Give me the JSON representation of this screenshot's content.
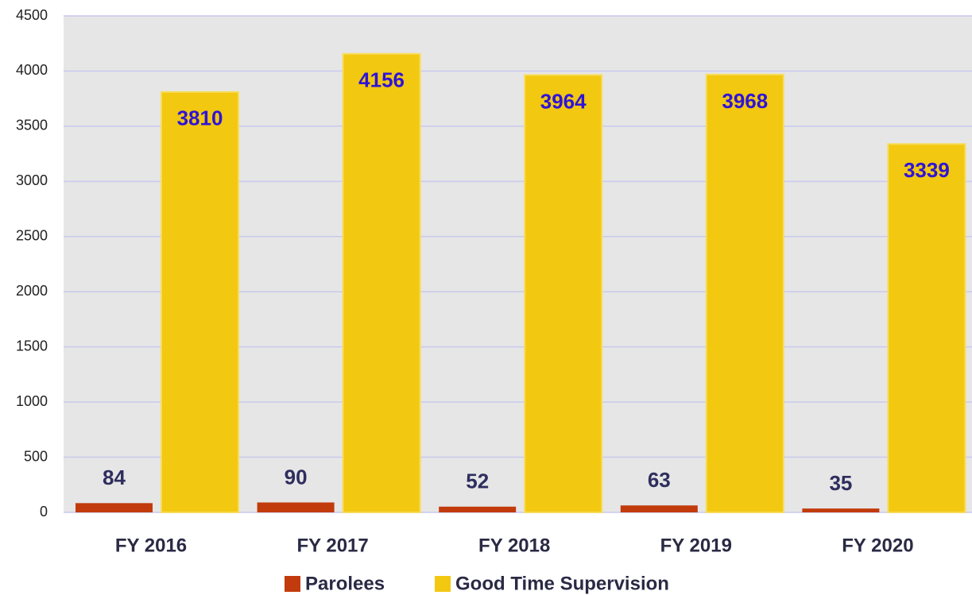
{
  "chart_data": {
    "type": "bar",
    "categories": [
      "FY 2016",
      "FY 2017",
      "FY 2018",
      "FY 2019",
      "FY 2020"
    ],
    "series": [
      {
        "name": "Parolees",
        "color": "#c23b0c",
        "values": [
          84,
          90,
          52,
          63,
          35
        ]
      },
      {
        "name": "Good Time Supervision",
        "color": "#f2c811",
        "values": [
          3810,
          4156,
          3964,
          3968,
          3339
        ]
      }
    ],
    "ylim": [
      0,
      4500
    ],
    "yticks": [
      0,
      500,
      1000,
      1500,
      2000,
      2500,
      3000,
      3500,
      4000,
      4500
    ],
    "grid": true,
    "legend": "bottom"
  }
}
